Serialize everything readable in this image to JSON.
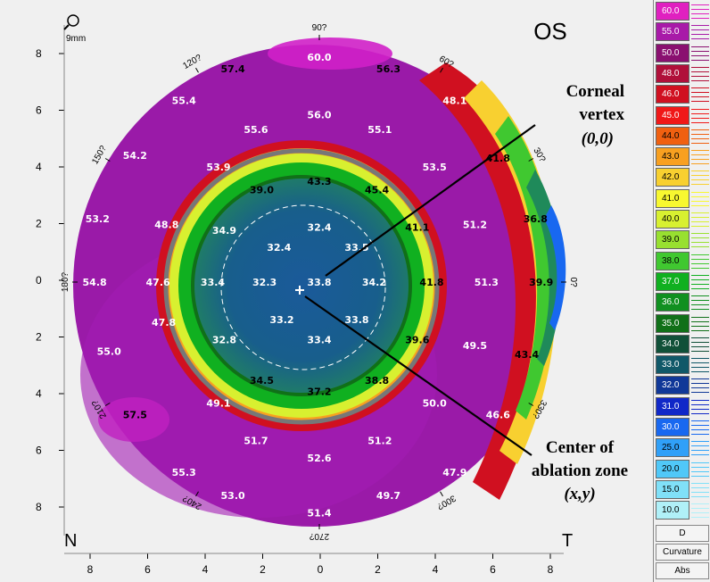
{
  "header": {
    "eye_label": "OS",
    "zoom_label": "9mm"
  },
  "orientation": {
    "nasal": "N",
    "temporal": "T"
  },
  "angles": [
    {
      "deg": 90,
      "label": "90?"
    },
    {
      "deg": 60,
      "label": "60?"
    },
    {
      "deg": 30,
      "label": "30?"
    },
    {
      "deg": 0,
      "label": "0?"
    },
    {
      "deg": 330,
      "label": "330?"
    },
    {
      "deg": 300,
      "label": "300?"
    },
    {
      "deg": 270,
      "label": "270?"
    },
    {
      "deg": 240,
      "label": "240?"
    },
    {
      "deg": 210,
      "label": "210?"
    },
    {
      "deg": 180,
      "label": "180?"
    },
    {
      "deg": 150,
      "label": "150?"
    },
    {
      "deg": 120,
      "label": "120?"
    }
  ],
  "y_ticks": [
    "8",
    "6",
    "4",
    "2",
    "0",
    "2",
    "4",
    "6",
    "8"
  ],
  "x_ticks": [
    "8",
    "6",
    "4",
    "2",
    "0",
    "2",
    "4",
    "6",
    "8"
  ],
  "readings": [
    {
      "v": "60.0",
      "x": 0,
      "y": 7.8,
      "d": 0
    },
    {
      "v": "57.4",
      "x": -3,
      "y": 7.4,
      "d": 1
    },
    {
      "v": "56.3",
      "x": 2.4,
      "y": 7.4,
      "d": 1
    },
    {
      "v": "55.4",
      "x": -4.7,
      "y": 6.3,
      "d": 0
    },
    {
      "v": "56.0",
      "x": 0,
      "y": 5.8,
      "d": 0
    },
    {
      "v": "48.1",
      "x": 4.7,
      "y": 6.3,
      "d": 0
    },
    {
      "v": "55.6",
      "x": -2.2,
      "y": 5.3,
      "d": 0
    },
    {
      "v": "55.1",
      "x": 2.1,
      "y": 5.3,
      "d": 0
    },
    {
      "v": "54.2",
      "x": -6.4,
      "y": 4.4,
      "d": 0
    },
    {
      "v": "41.8",
      "x": 6.2,
      "y": 4.3,
      "d": 1
    },
    {
      "v": "53.9",
      "x": -3.5,
      "y": 4.0,
      "d": 0
    },
    {
      "v": "53.5",
      "x": 4.0,
      "y": 4.0,
      "d": 0
    },
    {
      "v": "43.3",
      "x": 0,
      "y": 3.5,
      "d": 1
    },
    {
      "v": "39.0",
      "x": -2.0,
      "y": 3.2,
      "d": 1
    },
    {
      "v": "45.4",
      "x": 2.0,
      "y": 3.2,
      "d": 1
    },
    {
      "v": "53.2",
      "x": -7.7,
      "y": 2.2,
      "d": 0
    },
    {
      "v": "48.8",
      "x": -5.3,
      "y": 2.0,
      "d": 0
    },
    {
      "v": "34.9",
      "x": -3.3,
      "y": 1.8,
      "d": 0
    },
    {
      "v": "32.4",
      "x": 0,
      "y": 1.9,
      "d": 0
    },
    {
      "v": "41.1",
      "x": 3.4,
      "y": 1.9,
      "d": 1
    },
    {
      "v": "51.2",
      "x": 5.4,
      "y": 2.0,
      "d": 0
    },
    {
      "v": "36.8",
      "x": 7.5,
      "y": 2.2,
      "d": 1
    },
    {
      "v": "32.4",
      "x": -1.4,
      "y": 1.2,
      "d": 0
    },
    {
      "v": "33.5",
      "x": 1.3,
      "y": 1.2,
      "d": 0
    },
    {
      "v": "54.8",
      "x": -7.8,
      "y": 0,
      "d": 0
    },
    {
      "v": "47.6",
      "x": -5.6,
      "y": 0,
      "d": 0
    },
    {
      "v": "33.4",
      "x": -3.7,
      "y": 0,
      "d": 0
    },
    {
      "v": "32.3",
      "x": -1.9,
      "y": 0,
      "d": 0
    },
    {
      "v": "33.8",
      "x": 0,
      "y": 0,
      "d": 0
    },
    {
      "v": "34.2",
      "x": 1.9,
      "y": 0,
      "d": 0
    },
    {
      "v": "41.8",
      "x": 3.9,
      "y": 0,
      "d": 1
    },
    {
      "v": "51.3",
      "x": 5.8,
      "y": 0,
      "d": 0
    },
    {
      "v": "39.9",
      "x": 7.7,
      "y": 0,
      "d": 1
    },
    {
      "v": "33.2",
      "x": -1.3,
      "y": -1.3,
      "d": 0
    },
    {
      "v": "33.8",
      "x": 1.3,
      "y": -1.3,
      "d": 0
    },
    {
      "v": "55.0",
      "x": -7.3,
      "y": -2.4,
      "d": 0
    },
    {
      "v": "47.8",
      "x": -5.4,
      "y": -1.4,
      "d": 0
    },
    {
      "v": "32.8",
      "x": -3.3,
      "y": -2.0,
      "d": 0
    },
    {
      "v": "33.4",
      "x": 0,
      "y": -2.0,
      "d": 0
    },
    {
      "v": "39.6",
      "x": 3.4,
      "y": -2.0,
      "d": 1
    },
    {
      "v": "49.5",
      "x": 5.4,
      "y": -2.2,
      "d": 0
    },
    {
      "v": "43.4",
      "x": 7.2,
      "y": -2.5,
      "d": 1
    },
    {
      "v": "34.5",
      "x": -2.0,
      "y": -3.4,
      "d": 1
    },
    {
      "v": "37.2",
      "x": 0,
      "y": -3.8,
      "d": 1
    },
    {
      "v": "38.8",
      "x": 2.0,
      "y": -3.4,
      "d": 1
    },
    {
      "v": "57.5",
      "x": -6.4,
      "y": -4.6,
      "d": 1
    },
    {
      "v": "49.1",
      "x": -3.5,
      "y": -4.2,
      "d": 0
    },
    {
      "v": "50.0",
      "x": 4.0,
      "y": -4.2,
      "d": 0
    },
    {
      "v": "46.6",
      "x": 6.2,
      "y": -4.6,
      "d": 0
    },
    {
      "v": "51.7",
      "x": -2.2,
      "y": -5.5,
      "d": 0
    },
    {
      "v": "51.2",
      "x": 2.1,
      "y": -5.5,
      "d": 0
    },
    {
      "v": "52.6",
      "x": 0,
      "y": -6.1,
      "d": 0
    },
    {
      "v": "55.3",
      "x": -4.7,
      "y": -6.6,
      "d": 0
    },
    {
      "v": "47.9",
      "x": 4.7,
      "y": -6.6,
      "d": 0
    },
    {
      "v": "53.0",
      "x": -3.0,
      "y": -7.4,
      "d": 0
    },
    {
      "v": "49.7",
      "x": 2.4,
      "y": -7.4,
      "d": 0
    },
    {
      "v": "51.4",
      "x": 0,
      "y": -8.0,
      "d": 0
    }
  ],
  "annotations": {
    "corneal_vertex": [
      "Corneal",
      "vertex",
      "(0,0)"
    ],
    "ablation_center": [
      "Center of",
      "ablation zone",
      "(x,y)"
    ]
  },
  "legend": {
    "items": [
      {
        "value": "60.0",
        "color": "#e020c0"
      },
      {
        "value": "55.0",
        "color": "#a81aa8"
      },
      {
        "value": "50.0",
        "color": "#8a1070"
      },
      {
        "value": "48.0",
        "color": "#b0103a"
      },
      {
        "value": "46.0",
        "color": "#d01020"
      },
      {
        "value": "45.0",
        "color": "#f01818"
      },
      {
        "value": "44.0",
        "color": "#f06010"
      },
      {
        "value": "43.0",
        "color": "#f8a020"
      },
      {
        "value": "42.0",
        "color": "#f8d030"
      },
      {
        "value": "41.0",
        "color": "#f8f830"
      },
      {
        "value": "40.0",
        "color": "#d8f030"
      },
      {
        "value": "39.0",
        "color": "#98e030"
      },
      {
        "value": "38.0",
        "color": "#40c830"
      },
      {
        "value": "37.0",
        "color": "#10b020"
      },
      {
        "value": "36.0",
        "color": "#109020"
      },
      {
        "value": "35.0",
        "color": "#107018"
      },
      {
        "value": "34.0",
        "color": "#105038"
      },
      {
        "value": "33.0",
        "color": "#105868"
      },
      {
        "value": "32.0",
        "color": "#103898"
      },
      {
        "value": "31.0",
        "color": "#1028c8"
      },
      {
        "value": "30.0",
        "color": "#1868f0"
      },
      {
        "value": "25.0",
        "color": "#30a0f8"
      },
      {
        "value": "20.0",
        "color": "#50c8f8"
      },
      {
        "value": "15.0",
        "color": "#80e0f8"
      },
      {
        "value": "10.0",
        "color": "#b0f0f8"
      }
    ],
    "unit": "D",
    "type": "Curvature",
    "mode": "Abs"
  }
}
